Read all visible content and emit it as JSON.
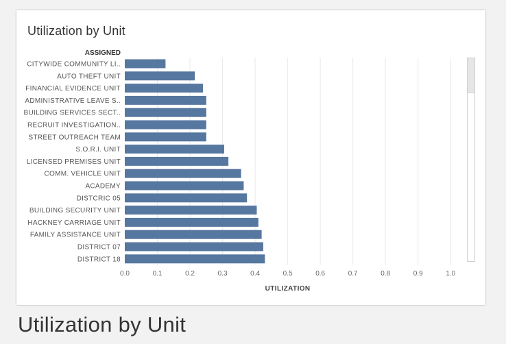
{
  "card": {
    "title": "Utilization by Unit"
  },
  "caption": "Utilization by Unit",
  "chart_data": {
    "type": "bar",
    "orientation": "horizontal",
    "title": "Utilization by Unit",
    "category_header": "ASSIGNED",
    "xlabel": "UTILIZATION",
    "categories": [
      "CITYWIDE COMMUNITY LI..",
      "AUTO THEFT UNIT",
      "FINANCIAL EVIDENCE UNIT",
      "ADMINISTRATIVE LEAVE S..",
      "BUILDING SERVICES SECT..",
      "RECRUIT INVESTIGATION..",
      "STREET OUTREACH TEAM",
      "S.O.R.I. UNIT",
      "LICENSED PREMISES UNIT",
      "COMM. VEHICLE UNIT",
      "ACADEMY",
      "DISTCRIC 05",
      "BUILDING SECURITY UNIT",
      "HACKNEY CARRIAGE UNIT",
      "FAMILY ASSISTANCE UNIT",
      "DISTRICT 07",
      "DISTRICT 18"
    ],
    "values": [
      0.125,
      0.215,
      0.24,
      0.25,
      0.25,
      0.25,
      0.25,
      0.305,
      0.318,
      0.357,
      0.365,
      0.375,
      0.405,
      0.41,
      0.42,
      0.425,
      0.43
    ],
    "xlim": [
      0,
      1.05
    ],
    "xticks": [
      0.0,
      0.1,
      0.2,
      0.3,
      0.4,
      0.5,
      0.6,
      0.7,
      0.8,
      0.9,
      1.0
    ],
    "xtick_labels": [
      "0.0",
      "0.1",
      "0.2",
      "0.3",
      "0.4",
      "0.5",
      "0.6",
      "0.7",
      "0.8",
      "0.9",
      "1.0"
    ],
    "grid": true,
    "bar_color": "#56779f",
    "gridline_color": "#e9e9e9"
  }
}
